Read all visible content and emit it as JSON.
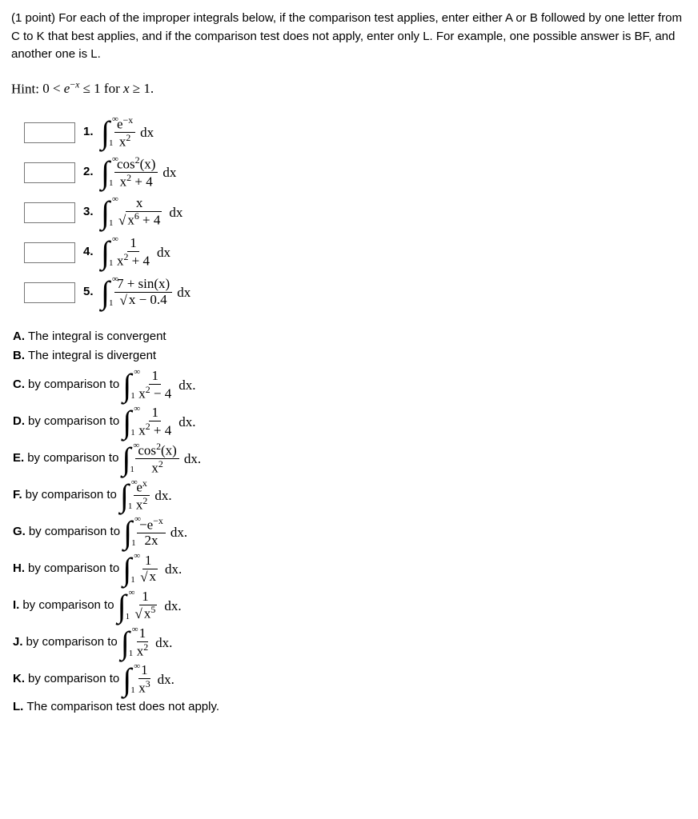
{
  "intro": "(1 point) For each of the improper integrals below, if the comparison test applies, enter either A or B followed by one letter from C to K that best applies, and if the comparison test does not apply, enter only L. For example, one possible answer is BF, and another one is L.",
  "hint_pre": "Hint: ",
  "hint_math": "0 < e⁻ˣ ≤ 1 for x ≥ 1.",
  "questions": [
    {
      "n": "1.",
      "num": "e^{-x}",
      "den": "x^2",
      "post": "dx"
    },
    {
      "n": "2.",
      "num": "cos^2(x)",
      "den": "x^2+4",
      "post": "dx"
    },
    {
      "n": "3.",
      "num": "x",
      "den": "sqrt{x^6+4}",
      "post": "dx"
    },
    {
      "n": "4.",
      "num": "1",
      "den": "x^2+4",
      "post": "dx"
    },
    {
      "n": "5.",
      "num": "7+sin(x)",
      "den": "sqrt{x-0.4}",
      "post": "dx"
    }
  ],
  "options": {
    "A": {
      "label": "A.",
      "text": "The integral is convergent"
    },
    "B": {
      "label": "B.",
      "text": "The integral is divergent"
    },
    "C": {
      "label": "C.",
      "text": "by comparison to "
    },
    "D": {
      "label": "D.",
      "text": "by comparison to "
    },
    "E": {
      "label": "E.",
      "text": "by comparison to "
    },
    "F": {
      "label": "F.",
      "text": "by comparison to "
    },
    "G": {
      "label": "G.",
      "text": "by comparison to "
    },
    "H": {
      "label": "H.",
      "text": "by comparison to "
    },
    "I": {
      "label": "I.",
      "text": "by comparison to "
    },
    "J": {
      "label": "J.",
      "text": "by comparison to "
    },
    "K": {
      "label": "K.",
      "text": "by comparison to "
    },
    "L": {
      "label": "L.",
      "text": "The comparison test does not apply."
    }
  },
  "integrals": {
    "q1": {
      "limTop": "∞",
      "limBot": "1",
      "num": "e<sup>−x</sup>",
      "den": "x<sup>2</sup>",
      "tail": " dx"
    },
    "q2": {
      "limTop": "∞",
      "limBot": "1",
      "num": "cos<sup>2</sup>(x)",
      "den": "x<sup>2</sup> + 4",
      "tail": " dx"
    },
    "q3": {
      "limTop": "∞",
      "limBot": "1",
      "num": "x",
      "den": "<span class='sqrt'><span class='rad'>x<sup>6</sup> + 4</span></span>",
      "tail": " dx"
    },
    "q4": {
      "limTop": "∞",
      "limBot": "1",
      "num": "1",
      "den": "x<sup>2</sup> + 4",
      "tail": " dx"
    },
    "q5": {
      "limTop": "∞",
      "limBot": "1",
      "num": "7 + sin(x)",
      "den": "<span class='sqrt'><span class='rad'>x − 0.4</span></span>",
      "tail": " dx"
    },
    "C": {
      "limTop": "∞",
      "limBot": "1",
      "num": "1",
      "den": "x<sup>2</sup> − 4",
      "tail": " dx."
    },
    "D": {
      "limTop": "∞",
      "limBot": "1",
      "num": "1",
      "den": "x<sup>2</sup> + 4",
      "tail": " dx."
    },
    "E": {
      "limTop": "∞",
      "limBot": "1",
      "num": "cos<sup>2</sup>(x)",
      "den": "x<sup>2</sup>",
      "tail": " dx."
    },
    "F": {
      "limTop": "∞",
      "limBot": "1",
      "num": "e<sup>x</sup>",
      "den": "x<sup>2</sup>",
      "tail": " dx."
    },
    "G": {
      "limTop": "∞",
      "limBot": "1",
      "num": "−e<sup>−x</sup>",
      "den": "2x",
      "tail": " dx."
    },
    "H": {
      "limTop": "∞",
      "limBot": "1",
      "num": "1",
      "den": "<span class='sqrt'><span class='rad'>x</span></span>",
      "tail": " dx."
    },
    "I": {
      "limTop": "∞",
      "limBot": "1",
      "num": "1",
      "den": "<span class='sqrt'><span class='rad'>x<sup>5</sup></span></span>",
      "tail": " dx."
    },
    "J": {
      "limTop": "∞",
      "limBot": "1",
      "num": "1",
      "den": "x<sup>2</sup>",
      "tail": " dx."
    },
    "K": {
      "limTop": "∞",
      "limBot": "1",
      "num": "1",
      "den": "x<sup>3</sup>",
      "tail": " dx."
    }
  },
  "hint_html": "0 &lt; <i>e</i><sup>−<i>x</i></sup> ≤ 1 for <i>x</i> ≥ 1."
}
